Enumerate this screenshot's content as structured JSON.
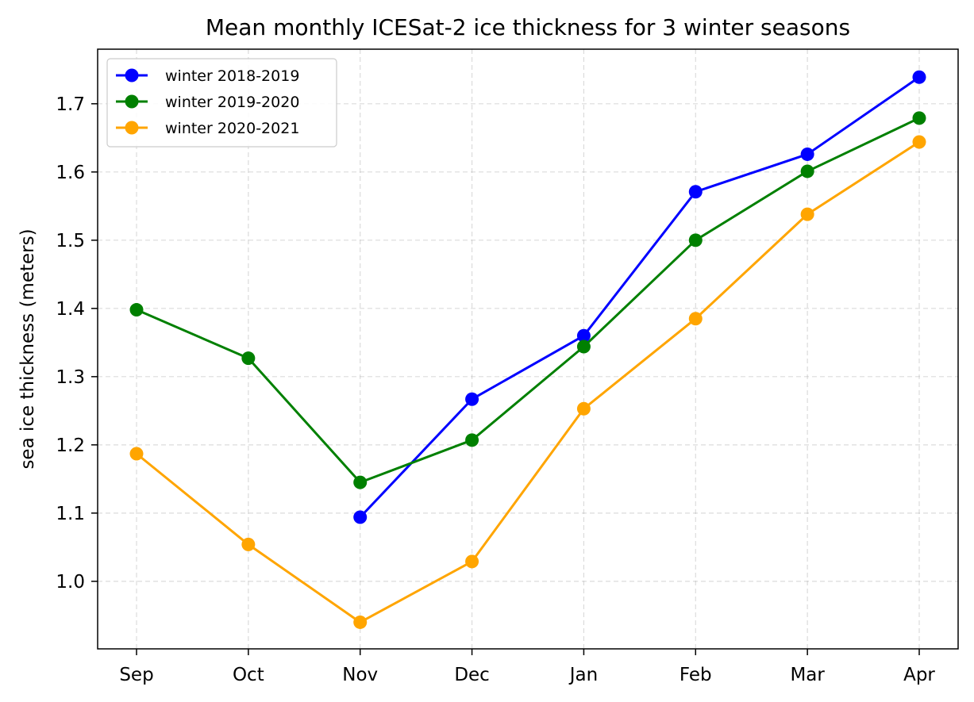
{
  "chart_data": {
    "type": "line",
    "title": "Mean monthly ICESat-2 ice thickness for 3 winter seasons",
    "xlabel": "",
    "ylabel": "sea ice thickness (meters)",
    "categories": [
      "Sep",
      "Oct",
      "Nov",
      "Dec",
      "Jan",
      "Feb",
      "Mar",
      "Apr"
    ],
    "ylim": [
      0.901,
      1.78
    ],
    "yticks": [
      "1.0",
      "1.1",
      "1.2",
      "1.3",
      "1.4",
      "1.5",
      "1.6",
      "1.7"
    ],
    "grid": true,
    "legend_position": "top-left",
    "series": [
      {
        "name": "winter 2018-2019",
        "color": "#0000ff",
        "values": [
          null,
          null,
          1.094,
          1.267,
          1.36,
          1.571,
          1.626,
          1.739
        ]
      },
      {
        "name": "winter 2019-2020",
        "color": "#008000",
        "values": [
          1.398,
          1.327,
          1.145,
          1.207,
          1.344,
          1.5,
          1.601,
          1.679
        ]
      },
      {
        "name": "winter 2020-2021",
        "color": "#ffa500",
        "values": [
          1.187,
          1.054,
          0.94,
          1.029,
          1.253,
          1.385,
          1.538,
          1.644
        ]
      }
    ]
  }
}
